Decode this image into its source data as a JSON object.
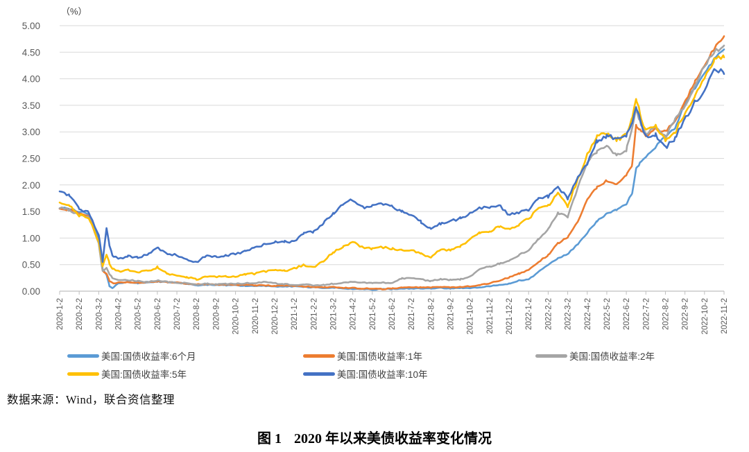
{
  "page": {
    "unit_label": "（%）",
    "source_note": "数据来源：Wind，联合资信整理",
    "figure_number": "图 1",
    "figure_title": "2020 年以来美债收益率变化情况"
  },
  "chart_data": {
    "type": "line",
    "title": "图1 2020年以来美债收益率变化情况",
    "xlabel": "",
    "ylabel": "（%）",
    "ylim": [
      0,
      5
    ],
    "ytick_step": 0.5,
    "y_tick_labels": [
      "0.00",
      "0.50",
      "1.00",
      "1.50",
      "2.00",
      "2.50",
      "3.00",
      "3.50",
      "4.00",
      "4.50",
      "5.00"
    ],
    "grid": true,
    "legend_position": "bottom",
    "x_unit_months_since": "2020-01-02",
    "x_tick_labels": [
      "2020-1-2",
      "2020-2-2",
      "2020-3-2",
      "2020-4-2",
      "2020-5-2",
      "2020-6-2",
      "2020-7-2",
      "2020-8-2",
      "2020-9-2",
      "2020-10-2",
      "2020-11-2",
      "2020-12-2",
      "2021-1-2",
      "2021-2-2",
      "2021-3-2",
      "2021-4-2",
      "2021-5-2",
      "2021-6-2",
      "2021-7-2",
      "2021-8-2",
      "2021-9-2",
      "2021-10-2",
      "2021-11-2",
      "2021-12-2",
      "2022-1-2",
      "2022-2-2",
      "2022-3-2",
      "2022-4-2",
      "2022-5-2",
      "2022-6-2",
      "2022-7-2",
      "2022-8-2",
      "2022-9-2",
      "2022-10-2",
      "2022-11-2"
    ],
    "x_months": [
      0,
      0.5,
      1,
      1.5,
      2,
      2.2,
      2.4,
      2.55,
      2.7,
      3,
      3.5,
      4,
      4.5,
      5,
      5.5,
      6,
      6.5,
      7,
      7.5,
      8,
      8.5,
      9,
      9.5,
      10,
      10.5,
      11,
      11.5,
      12,
      12.5,
      13,
      13.5,
      14,
      14.5,
      15,
      15.5,
      16,
      16.5,
      17,
      17.5,
      18,
      18.5,
      19,
      19.5,
      20,
      20.5,
      21,
      21.5,
      22,
      22.5,
      23,
      23.5,
      24,
      24.5,
      25,
      25.5,
      26,
      26.5,
      27,
      27.5,
      28,
      28.5,
      29,
      29.3,
      29.5,
      29.7,
      30,
      30.5,
      31,
      31.5,
      32,
      32.5,
      33,
      33.5,
      34
    ],
    "series": [
      {
        "name": "美国:国债收益率:6个月",
        "color": "#5B9BD5",
        "values": [
          1.57,
          1.55,
          1.5,
          1.46,
          0.98,
          0.42,
          0.3,
          0.1,
          0.06,
          0.15,
          0.17,
          0.15,
          0.17,
          0.18,
          0.17,
          0.16,
          0.14,
          0.11,
          0.12,
          0.12,
          0.11,
          0.11,
          0.1,
          0.1,
          0.1,
          0.09,
          0.09,
          0.09,
          0.08,
          0.07,
          0.06,
          0.07,
          0.05,
          0.04,
          0.04,
          0.03,
          0.04,
          0.04,
          0.05,
          0.05,
          0.05,
          0.05,
          0.06,
          0.05,
          0.06,
          0.06,
          0.07,
          0.09,
          0.12,
          0.14,
          0.2,
          0.22,
          0.36,
          0.5,
          0.62,
          0.7,
          0.88,
          1.1,
          1.32,
          1.46,
          1.54,
          1.64,
          1.85,
          2.3,
          2.42,
          2.52,
          2.72,
          2.92,
          3.08,
          3.55,
          3.82,
          4.1,
          4.38,
          4.58
        ]
      },
      {
        "name": "美国:国债收益率:1年",
        "color": "#ED7D31",
        "values": [
          1.56,
          1.53,
          1.47,
          1.41,
          0.92,
          0.38,
          0.33,
          0.19,
          0.15,
          0.16,
          0.17,
          0.16,
          0.17,
          0.18,
          0.17,
          0.16,
          0.14,
          0.13,
          0.13,
          0.12,
          0.12,
          0.12,
          0.12,
          0.11,
          0.11,
          0.1,
          0.1,
          0.1,
          0.09,
          0.08,
          0.07,
          0.08,
          0.06,
          0.06,
          0.05,
          0.05,
          0.04,
          0.05,
          0.07,
          0.07,
          0.07,
          0.07,
          0.08,
          0.07,
          0.08,
          0.09,
          0.12,
          0.15,
          0.2,
          0.26,
          0.33,
          0.4,
          0.55,
          0.68,
          0.9,
          1.02,
          1.3,
          1.72,
          1.96,
          2.08,
          2.02,
          2.18,
          2.38,
          3.12,
          3.05,
          2.92,
          3.05,
          3.0,
          3.22,
          3.55,
          3.95,
          4.22,
          4.58,
          4.78
        ]
      },
      {
        "name": "美国:国债收益率:2年",
        "color": "#A5A5A5",
        "values": [
          1.57,
          1.53,
          1.42,
          1.39,
          0.9,
          0.37,
          0.45,
          0.32,
          0.25,
          0.22,
          0.21,
          0.19,
          0.17,
          0.2,
          0.18,
          0.16,
          0.15,
          0.12,
          0.14,
          0.13,
          0.14,
          0.14,
          0.15,
          0.15,
          0.17,
          0.15,
          0.13,
          0.12,
          0.13,
          0.11,
          0.12,
          0.14,
          0.16,
          0.17,
          0.16,
          0.16,
          0.16,
          0.15,
          0.24,
          0.24,
          0.22,
          0.19,
          0.23,
          0.21,
          0.22,
          0.28,
          0.42,
          0.46,
          0.52,
          0.57,
          0.68,
          0.77,
          0.99,
          1.16,
          1.47,
          1.4,
          1.94,
          2.44,
          2.62,
          2.72,
          2.57,
          2.66,
          3.1,
          3.42,
          3.2,
          2.96,
          3.1,
          2.9,
          3.25,
          3.5,
          3.85,
          4.25,
          4.5,
          4.63
        ]
      },
      {
        "name": "美国:国债收益率:5年",
        "color": "#FFC000",
        "values": [
          1.66,
          1.6,
          1.43,
          1.38,
          0.92,
          0.48,
          0.7,
          0.52,
          0.42,
          0.37,
          0.4,
          0.36,
          0.38,
          0.45,
          0.33,
          0.3,
          0.27,
          0.22,
          0.28,
          0.27,
          0.28,
          0.28,
          0.32,
          0.33,
          0.37,
          0.39,
          0.38,
          0.43,
          0.49,
          0.45,
          0.57,
          0.73,
          0.83,
          0.92,
          0.83,
          0.8,
          0.83,
          0.8,
          0.77,
          0.78,
          0.7,
          0.65,
          0.78,
          0.78,
          0.85,
          0.97,
          1.1,
          1.12,
          1.23,
          1.17,
          1.25,
          1.37,
          1.55,
          1.61,
          1.85,
          1.6,
          2.1,
          2.56,
          2.9,
          3.0,
          2.85,
          2.94,
          3.3,
          3.6,
          3.35,
          3.01,
          3.12,
          2.85,
          3.0,
          3.35,
          3.65,
          4.05,
          4.35,
          4.42
        ]
      },
      {
        "name": "美国:国债收益率:10年",
        "color": "#4472C4",
        "values": [
          1.88,
          1.8,
          1.55,
          1.48,
          1.05,
          0.56,
          1.18,
          0.85,
          0.68,
          0.6,
          0.66,
          0.63,
          0.69,
          0.82,
          0.7,
          0.68,
          0.6,
          0.54,
          0.67,
          0.64,
          0.67,
          0.7,
          0.76,
          0.82,
          0.88,
          0.93,
          0.93,
          0.93,
          1.09,
          1.12,
          1.28,
          1.45,
          1.64,
          1.72,
          1.58,
          1.6,
          1.64,
          1.59,
          1.5,
          1.44,
          1.3,
          1.18,
          1.27,
          1.32,
          1.37,
          1.47,
          1.57,
          1.57,
          1.62,
          1.43,
          1.48,
          1.52,
          1.77,
          1.78,
          1.97,
          1.75,
          2.15,
          2.4,
          2.83,
          2.92,
          2.88,
          2.93,
          3.2,
          3.48,
          3.25,
          2.9,
          2.95,
          2.7,
          2.88,
          3.25,
          3.55,
          3.78,
          4.2,
          4.12
        ]
      }
    ],
    "legend_layout": [
      [
        0,
        1,
        2
      ],
      [
        3,
        4
      ]
    ]
  }
}
